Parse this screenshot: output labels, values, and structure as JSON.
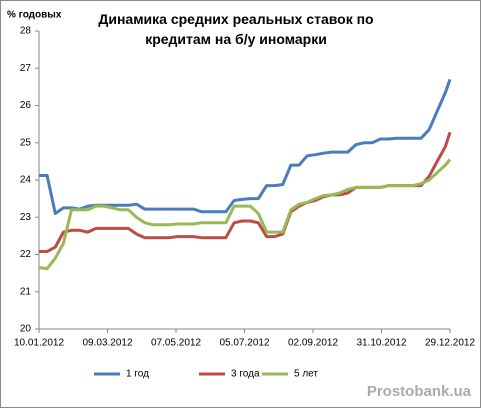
{
  "chart_data": {
    "type": "line",
    "title": "Динамика средних реальных ставок по кредитам на б/у иномарки",
    "y_label": "% годовых",
    "watermark": "Prostobank.ua",
    "x": [
      "2012-01-10",
      "2012-01-17",
      "2012-01-24",
      "2012-01-31",
      "2012-02-07",
      "2012-02-14",
      "2012-02-21",
      "2012-02-28",
      "2012-03-06",
      "2012-03-13",
      "2012-03-20",
      "2012-03-27",
      "2012-04-03",
      "2012-04-10",
      "2012-04-17",
      "2012-04-24",
      "2012-05-01",
      "2012-05-08",
      "2012-05-15",
      "2012-05-22",
      "2012-05-29",
      "2012-06-05",
      "2012-06-12",
      "2012-06-19",
      "2012-06-26",
      "2012-07-03",
      "2012-07-10",
      "2012-07-17",
      "2012-07-24",
      "2012-07-31",
      "2012-08-07",
      "2012-08-14",
      "2012-08-21",
      "2012-08-28",
      "2012-09-04",
      "2012-09-11",
      "2012-09-18",
      "2012-09-25",
      "2012-10-02",
      "2012-10-09",
      "2012-10-16",
      "2012-10-23",
      "2012-10-30",
      "2012-11-06",
      "2012-11-13",
      "2012-11-20",
      "2012-11-27",
      "2012-12-04",
      "2012-12-11",
      "2012-12-18",
      "2012-12-25",
      "2012-12-29"
    ],
    "series": [
      {
        "name": "1 год",
        "color": "#4a7ebb",
        "values": [
          24.12,
          24.12,
          23.1,
          23.25,
          23.25,
          23.22,
          23.3,
          23.32,
          23.32,
          23.32,
          23.32,
          23.32,
          23.35,
          23.22,
          23.22,
          23.22,
          23.22,
          23.22,
          23.22,
          23.22,
          23.15,
          23.15,
          23.15,
          23.15,
          23.45,
          23.48,
          23.5,
          23.5,
          23.85,
          23.85,
          23.88,
          24.4,
          24.4,
          24.65,
          24.68,
          24.72,
          24.75,
          24.75,
          24.75,
          24.95,
          25.0,
          25.0,
          25.1,
          25.1,
          25.12,
          25.12,
          25.12,
          25.12,
          25.35,
          25.85,
          26.35,
          26.7
        ]
      },
      {
        "name": "3 года",
        "color": "#be4b48",
        "values": [
          22.08,
          22.08,
          22.2,
          22.6,
          22.65,
          22.65,
          22.6,
          22.7,
          22.7,
          22.7,
          22.7,
          22.7,
          22.55,
          22.45,
          22.45,
          22.45,
          22.45,
          22.48,
          22.48,
          22.48,
          22.45,
          22.45,
          22.45,
          22.45,
          22.85,
          22.9,
          22.9,
          22.85,
          22.48,
          22.48,
          22.55,
          23.15,
          23.3,
          23.4,
          23.45,
          23.55,
          23.6,
          23.6,
          23.65,
          23.8,
          23.8,
          23.8,
          23.8,
          23.85,
          23.85,
          23.85,
          23.85,
          23.85,
          24.1,
          24.5,
          24.9,
          25.28
        ]
      },
      {
        "name": "5 лет",
        "color": "#98b954",
        "values": [
          21.65,
          21.62,
          21.9,
          22.3,
          23.2,
          23.2,
          23.2,
          23.3,
          23.3,
          23.25,
          23.2,
          23.2,
          23.0,
          22.85,
          22.8,
          22.8,
          22.8,
          22.82,
          22.82,
          22.82,
          22.85,
          22.85,
          22.85,
          22.85,
          23.3,
          23.3,
          23.3,
          23.1,
          22.6,
          22.6,
          22.6,
          23.2,
          23.35,
          23.4,
          23.5,
          23.58,
          23.6,
          23.65,
          23.75,
          23.8,
          23.8,
          23.8,
          23.8,
          23.85,
          23.85,
          23.85,
          23.85,
          23.9,
          24.0,
          24.2,
          24.4,
          24.55
        ]
      }
    ],
    "xlim": [
      "2012-01-10",
      "2012-12-29"
    ],
    "xticks": [
      {
        "value": "2012-01-10",
        "label": "10.01.2012"
      },
      {
        "value": "2012-03-09",
        "label": "09.03.2012"
      },
      {
        "value": "2012-05-07",
        "label": "07.05.2012"
      },
      {
        "value": "2012-07-05",
        "label": "05.07.2012"
      },
      {
        "value": "2012-09-02",
        "label": "02.09.2012"
      },
      {
        "value": "2012-10-31",
        "label": "31.10.2012"
      },
      {
        "value": "2012-12-29",
        "label": "29.12.2012"
      }
    ],
    "ylim": [
      20,
      28
    ],
    "yticks": [
      20,
      21,
      22,
      23,
      24,
      25,
      26,
      27,
      28
    ],
    "grid": false,
    "legend": "bottom"
  }
}
